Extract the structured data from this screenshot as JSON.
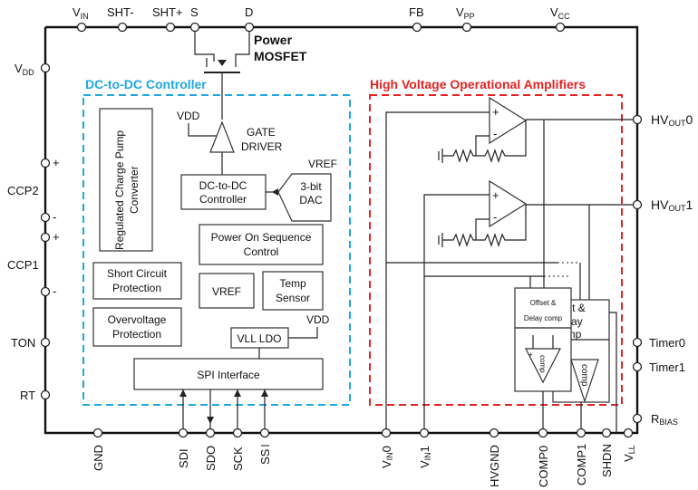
{
  "top_pins": {
    "vin": "V",
    "vin_sub": "IN",
    "sht_minus": "SHT-",
    "sht_plus": "SHT+",
    "s": "S",
    "d": "D",
    "fb": "FB",
    "vpp": "V",
    "vpp_sub": "PP",
    "vcc": "V",
    "vcc_sub": "CC"
  },
  "left_pins": {
    "vdd": "V",
    "vdd_sub": "DD",
    "ccp2": "CCP2",
    "ccp1": "CCP1",
    "ton": "TON",
    "rt": "RT",
    "plus": "+",
    "minus": "-"
  },
  "right_pins": {
    "hvout0": "HV",
    "hvout0_sub": "OUT",
    "hvout0_suffix": "0",
    "hvout1": "HV",
    "hvout1_sub": "OUT",
    "hvout1_suffix": "1",
    "timer0": "Timer0",
    "timer1": "Timer1",
    "rbias": "R",
    "rbias_sub": "BIAS"
  },
  "bottom_pins": {
    "gnd": "GND",
    "sdi": "SDI",
    "sdo": "SDO",
    "sck": "SCK",
    "ss": "SS",
    "vin0": "V",
    "vin0_sub": "IN",
    "vin0_suffix": "0",
    "vin1": "V",
    "vin1_sub": "IN",
    "vin1_suffix": "1",
    "hvgnd": "HVGND",
    "comp0": "COMP0",
    "comp1": "COMP1",
    "shdn": "SHDN",
    "vll": "V",
    "vll_sub": "LL"
  },
  "mosfet": {
    "line1": "Power",
    "line2": "MOSFET"
  },
  "dc_dc": {
    "title": "DC-to-DC Controller",
    "title_color": "#1ea7e0",
    "charge_pump_1": "Regulated Charge Pump",
    "charge_pump_2": "Converter",
    "vdd_label": "VDD",
    "gate_driver_1": "GATE",
    "gate_driver_2": "DRIVER",
    "controller_1": "DC-to-DC",
    "controller_2": "Controller",
    "vref_label": "VREF",
    "dac_1": "3-bit",
    "dac_2": "DAC",
    "power_on_1": "Power On Sequence",
    "power_on_2": "Control",
    "short_1": "Short Circuit",
    "short_2": "Protection",
    "ov_1": "Overvoltage",
    "ov_2": "Protection",
    "vref": "VREF",
    "temp_1": "Temp",
    "temp_2": "Sensor",
    "vll_ldo": "VLL LDO",
    "vdd_label2": "VDD",
    "spi": "SPI Interface"
  },
  "hv": {
    "title": "High Voltage Operational Amplifiers",
    "title_color": "#e52222",
    "offset0_1": "Offset &",
    "offset0_2": "Delay comp",
    "comp0": "comp",
    "offset1_1": "ffset &",
    "offset1_2": "Delay",
    "offset1_3": "comp",
    "comp1": "comp",
    "plus": "+",
    "minus": "-"
  }
}
